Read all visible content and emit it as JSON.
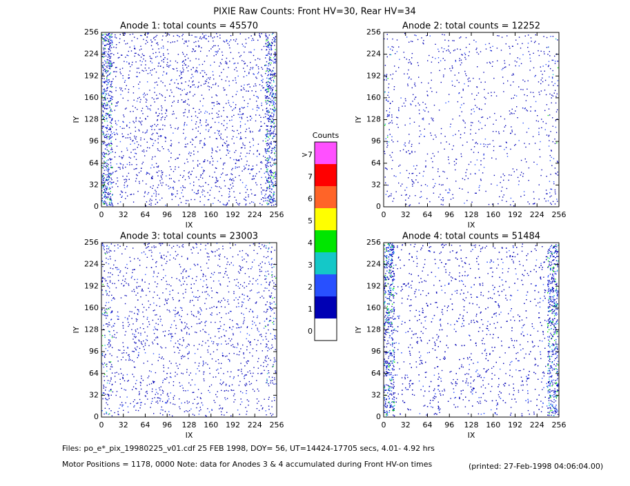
{
  "figure": {
    "title": "PIXIE Raw Counts:  Front HV=30, Rear HV=34",
    "colorbar": {
      "title": "Counts",
      "labels": [
        0,
        1,
        2,
        3,
        4,
        5,
        6,
        7,
        ">7"
      ],
      "colors": [
        "#ffffff",
        "#0000b4",
        "#2850ff",
        "#14c8c8",
        "#00e600",
        "#ffff00",
        "#ff6428",
        "#ff0000",
        "#ff50ff"
      ]
    },
    "footer": [
      "Files: po_e*_pix_19980225_v01.cdf    25 FEB 1998, DOY= 56, UT=14424-17705 secs,  4.01- 4.92 hrs",
      "Motor Positions = 1178, 0000   Note: data for Anodes 3 & 4 accumulated during Front HV-on times",
      "(printed: 27-Feb-1998 04:06:04.00)"
    ]
  },
  "chart_data": [
    {
      "type": "heatmap",
      "title": "Anode 1: total counts = 45570",
      "xlabel": "IX",
      "ylabel": "IY",
      "xlim": [
        0,
        256
      ],
      "ylim": [
        0,
        256
      ],
      "xticks": [
        0,
        32,
        64,
        96,
        128,
        160,
        192,
        224,
        256
      ],
      "yticks": [
        0,
        32,
        64,
        96,
        128,
        160,
        192,
        224,
        256
      ]
    },
    {
      "type": "heatmap",
      "title": "Anode 2: total counts = 12252",
      "xlabel": "IX",
      "ylabel": "IY",
      "xlim": [
        0,
        256
      ],
      "ylim": [
        0,
        256
      ],
      "xticks": [
        0,
        32,
        64,
        96,
        128,
        160,
        192,
        224,
        256
      ],
      "yticks": [
        0,
        32,
        64,
        96,
        128,
        160,
        192,
        224,
        256
      ]
    },
    {
      "type": "heatmap",
      "title": "Anode 3: total counts = 23003",
      "xlabel": "IX",
      "ylabel": "IY",
      "xlim": [
        0,
        256
      ],
      "ylim": [
        0,
        256
      ],
      "xticks": [
        0,
        32,
        64,
        96,
        128,
        160,
        192,
        224,
        256
      ],
      "yticks": [
        0,
        32,
        64,
        96,
        128,
        160,
        192,
        224,
        256
      ]
    },
    {
      "type": "heatmap",
      "title": "Anode 4: total counts = 51484",
      "xlabel": "IX",
      "ylabel": "IY",
      "xlim": [
        0,
        256
      ],
      "ylim": [
        0,
        256
      ],
      "xticks": [
        0,
        32,
        64,
        96,
        128,
        160,
        192,
        224,
        256
      ],
      "yticks": [
        0,
        32,
        64,
        96,
        128,
        160,
        192,
        224,
        256
      ]
    }
  ]
}
